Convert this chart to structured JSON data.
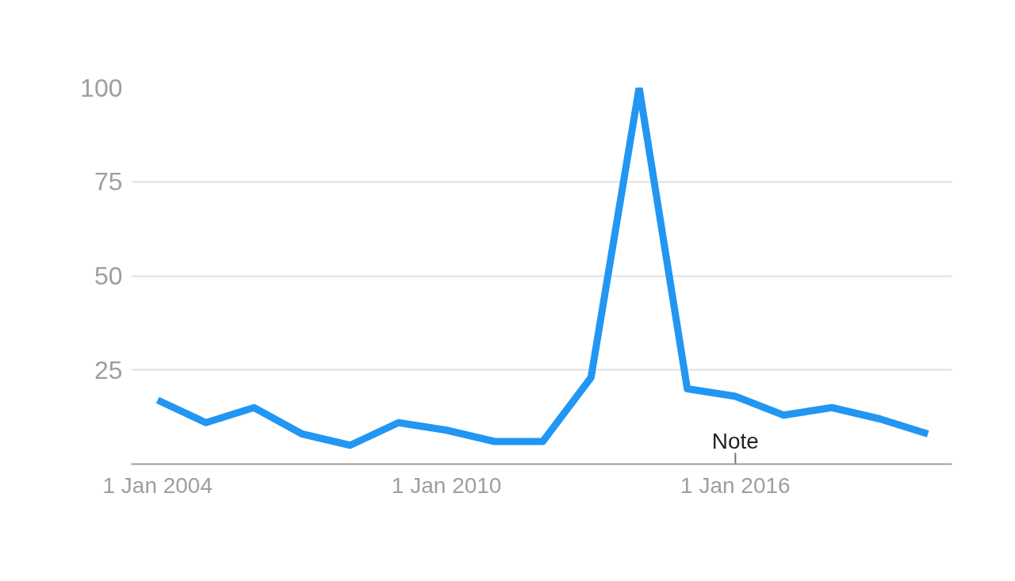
{
  "chart_data": {
    "type": "line",
    "x": [
      "2004-01-01",
      "2005-01-01",
      "2006-01-01",
      "2007-01-01",
      "2008-01-01",
      "2009-01-01",
      "2010-01-01",
      "2011-01-01",
      "2012-01-01",
      "2013-01-01",
      "2014-01-01",
      "2015-01-01",
      "2016-01-01",
      "2017-01-01",
      "2018-01-01",
      "2019-01-01",
      "2020-01-01"
    ],
    "series": [
      {
        "color": "#2196f3",
        "values": [
          17,
          11,
          15,
          8,
          5,
          11,
          9,
          6,
          6,
          23,
          100,
          20,
          18,
          13,
          15,
          12,
          8
        ]
      }
    ],
    "xlim": [
      "2003-06-15",
      "2020-07-01"
    ],
    "xticks": [
      {
        "value": "2004-01-01",
        "label": "1 Jan 2004"
      },
      {
        "value": "2010-01-01",
        "label": "1 Jan 2010"
      },
      {
        "value": "2016-01-01",
        "label": "1 Jan 2016"
      }
    ],
    "ylim": [
      0,
      100
    ],
    "yticks": [
      25,
      50,
      75,
      100
    ],
    "grid": "y",
    "marker": "none",
    "line_style": "solid",
    "annotations": [
      {
        "text": "Note",
        "x": "2016-01-01"
      }
    ]
  }
}
